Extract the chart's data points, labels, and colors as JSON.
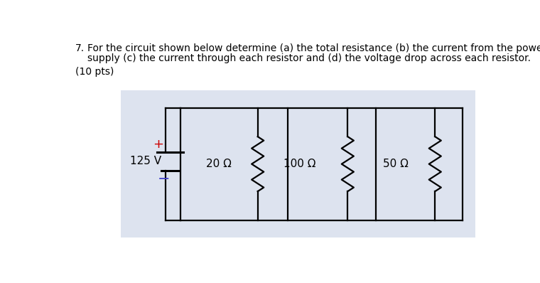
{
  "bg_color": "#ffffff",
  "circuit_bg": "#dde3ef",
  "text_color": "#000000",
  "question_number": "7.",
  "question_line1": "For the circuit shown below determine (a) the total resistance (b) the current from the power",
  "question_line2": "supply (c) the current through each resistor and (d) the voltage drop across each resistor.",
  "points": "(10 pts)",
  "voltage": "125 V",
  "resistors": [
    "20 Ω",
    "100 Ω",
    "50 Ω"
  ],
  "plus_color": "#cc0000",
  "minus_color": "#4444cc",
  "wire_color": "#000000",
  "font_size_question": 10.0,
  "font_size_labels": 11.0,
  "font_size_pm": 13.0
}
